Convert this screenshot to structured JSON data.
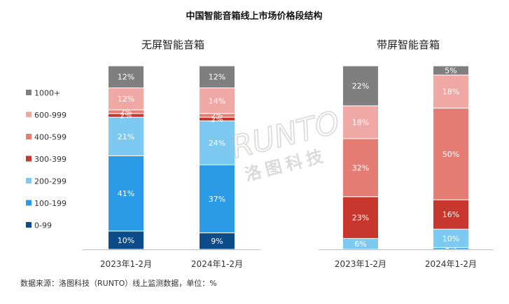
{
  "chart_data": {
    "type": "bar",
    "stacked": true,
    "percent": true,
    "title": "中国智能音箱线上市场价格段结构",
    "legend": {
      "placement": "left",
      "items": [
        {
          "name": "1000+",
          "color": "#7f7f7f"
        },
        {
          "name": "600-999",
          "color": "#f0a8a4"
        },
        {
          "name": "400-599",
          "color": "#e57d75"
        },
        {
          "name": "300-399",
          "color": "#c8372d"
        },
        {
          "name": "200-299",
          "color": "#7cc9f2"
        },
        {
          "name": "100-199",
          "color": "#2b9be8"
        },
        {
          "name": "0-99",
          "color": "#0d4c8a"
        }
      ]
    },
    "panels": [
      {
        "title": "无屏智能音箱",
        "categories": [
          "2023年1-2月",
          "2024年1-2月"
        ],
        "bars": [
          {
            "segments": [
              {
                "series": "0-99",
                "value": 10,
                "label": "10%"
              },
              {
                "series": "100-199",
                "value": 41,
                "label": "41%"
              },
              {
                "series": "200-299",
                "value": 21,
                "label": "21%"
              },
              {
                "series": "300-399",
                "value": 2,
                "label": "2%"
              },
              {
                "series": "400-599",
                "value": 2,
                "label": "2%"
              },
              {
                "series": "600-999",
                "value": 12,
                "label": "12%"
              },
              {
                "series": "1000+",
                "value": 12,
                "label": "12%"
              }
            ]
          },
          {
            "segments": [
              {
                "series": "0-99",
                "value": 9,
                "label": "9%"
              },
              {
                "series": "100-199",
                "value": 37,
                "label": "37%"
              },
              {
                "series": "200-299",
                "value": 24,
                "label": "24%"
              },
              {
                "series": "300-399",
                "value": 2,
                "label": "2%"
              },
              {
                "series": "400-599",
                "value": 2,
                "label": "2%"
              },
              {
                "series": "600-999",
                "value": 14,
                "label": "14%"
              },
              {
                "series": "1000+",
                "value": 12,
                "label": "12%"
              }
            ]
          }
        ]
      },
      {
        "title": "带屏智能音箱",
        "categories": [
          "2023年1-2月",
          "2024年1-2月"
        ],
        "bars": [
          {
            "segments": [
              {
                "series": "0-99",
                "value": 0,
                "label": "0%"
              },
              {
                "series": "100-199",
                "value": 0,
                "label": ""
              },
              {
                "series": "200-299",
                "value": 6,
                "label": "6%"
              },
              {
                "series": "300-399",
                "value": 23,
                "label": "23%"
              },
              {
                "series": "400-599",
                "value": 32,
                "label": "32%"
              },
              {
                "series": "600-999",
                "value": 18,
                "label": "18%"
              },
              {
                "series": "1000+",
                "value": 22,
                "label": "22%"
              }
            ]
          },
          {
            "segments": [
              {
                "series": "0-99",
                "value": 0,
                "label": ""
              },
              {
                "series": "100-199",
                "value": 1,
                "label": "1%"
              },
              {
                "series": "200-299",
                "value": 10,
                "label": "10%"
              },
              {
                "series": "300-399",
                "value": 16,
                "label": "16%"
              },
              {
                "series": "400-599",
                "value": 50,
                "label": "50%"
              },
              {
                "series": "600-999",
                "value": 18,
                "label": "18%"
              },
              {
                "series": "1000+",
                "value": 5,
                "label": "5%"
              }
            ]
          }
        ]
      }
    ],
    "watermark": {
      "brand": "RUNTO",
      "name": "洛图科技"
    },
    "source": "数据来源：洛图科技（RUNTO）线上监测数据，单位：%"
  }
}
